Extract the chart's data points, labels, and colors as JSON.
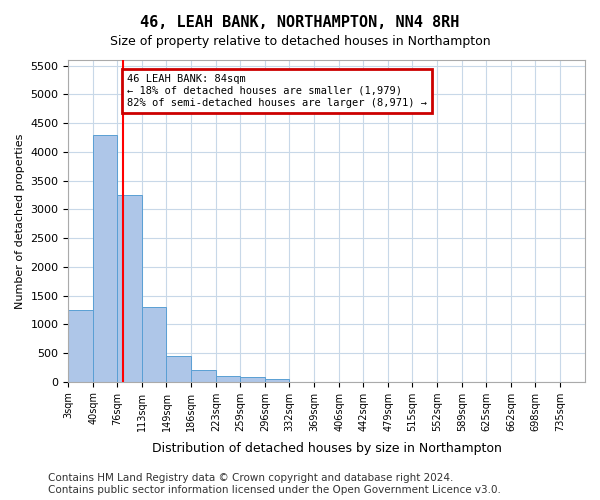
{
  "title": "46, LEAH BANK, NORTHAMPTON, NN4 8RH",
  "subtitle": "Size of property relative to detached houses in Northampton",
  "xlabel": "Distribution of detached houses by size in Northampton",
  "ylabel": "Number of detached properties",
  "bar_color": "#aec6e8",
  "bar_edge_color": "#5a9fd4",
  "grid_color": "#c8d8e8",
  "background_color": "#ffffff",
  "annotation_box_color": "#cc0000",
  "annotation_text": "46 LEAH BANK: 84sqm\n← 18% of detached houses are smaller (1,979)\n82% of semi-detached houses are larger (8,971) →",
  "redline_x": 84,
  "categories": [
    "3sqm",
    "40sqm",
    "76sqm",
    "113sqm",
    "149sqm",
    "186sqm",
    "223sqm",
    "259sqm",
    "296sqm",
    "332sqm",
    "369sqm",
    "406sqm",
    "442sqm",
    "479sqm",
    "515sqm",
    "552sqm",
    "589sqm",
    "625sqm",
    "662sqm",
    "698sqm",
    "735sqm"
  ],
  "bin_edges": [
    3,
    40,
    76,
    113,
    149,
    186,
    223,
    259,
    296,
    332,
    369,
    406,
    442,
    479,
    515,
    552,
    589,
    625,
    662,
    698,
    735,
    772
  ],
  "values": [
    1250,
    4300,
    3250,
    1300,
    450,
    200,
    100,
    75,
    50,
    0,
    0,
    0,
    0,
    0,
    0,
    0,
    0,
    0,
    0,
    0,
    0
  ],
  "ylim": [
    0,
    5600
  ],
  "yticks": [
    0,
    500,
    1000,
    1500,
    2000,
    2500,
    3000,
    3500,
    4000,
    4500,
    5000,
    5500
  ],
  "footer": "Contains HM Land Registry data © Crown copyright and database right 2024.\nContains public sector information licensed under the Open Government Licence v3.0.",
  "footer_fontsize": 7.5
}
